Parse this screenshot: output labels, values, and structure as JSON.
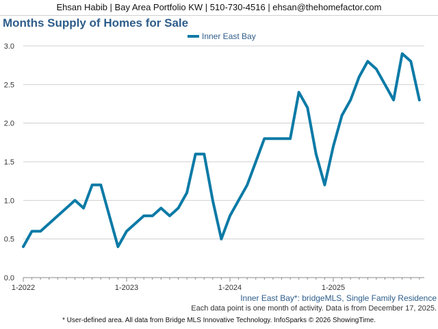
{
  "header": {
    "text": "Ehsan Habib | Bay Area Portfolio KW | 510-730-4516 | ehsan@thehomefactor.com"
  },
  "chart_data": {
    "type": "line",
    "title": "Months Supply of Homes for Sale",
    "legend": [
      "Inner East Bay"
    ],
    "legend_position": "top-center",
    "grid": true,
    "ylim": [
      0,
      3.0
    ],
    "yticks": [
      0.0,
      0.5,
      1.0,
      1.5,
      2.0,
      2.5,
      3.0
    ],
    "ytick_labels": [
      "0.0",
      "0.5",
      "1.0",
      "1.5",
      "2.0",
      "2.5",
      "3.0"
    ],
    "xtick_labels": [
      "1-2022",
      "1-2023",
      "1-2024",
      "1-2025"
    ],
    "x": [
      "1-2022",
      "2-2022",
      "3-2022",
      "4-2022",
      "5-2022",
      "6-2022",
      "7-2022",
      "8-2022",
      "9-2022",
      "10-2022",
      "11-2022",
      "12-2022",
      "1-2023",
      "2-2023",
      "3-2023",
      "4-2023",
      "5-2023",
      "6-2023",
      "7-2023",
      "8-2023",
      "9-2023",
      "10-2023",
      "11-2023",
      "12-2023",
      "1-2024",
      "2-2024",
      "3-2024",
      "4-2024",
      "5-2024",
      "6-2024",
      "7-2024",
      "8-2024",
      "9-2024",
      "10-2024",
      "11-2024",
      "12-2024",
      "1-2025",
      "2-2025",
      "3-2025",
      "4-2025",
      "5-2025",
      "6-2025",
      "7-2025",
      "8-2025",
      "9-2025",
      "10-2025",
      "11-2025"
    ],
    "series": [
      {
        "name": "Inner East Bay",
        "color": "#0b7aa6",
        "values": [
          0.4,
          0.6,
          0.6,
          0.7,
          0.8,
          0.9,
          1.0,
          0.9,
          1.2,
          1.2,
          0.8,
          0.4,
          0.6,
          0.7,
          0.8,
          0.8,
          0.9,
          0.8,
          0.9,
          1.1,
          1.6,
          1.6,
          1.0,
          0.5,
          0.8,
          1.0,
          1.2,
          1.5,
          1.8,
          1.8,
          1.8,
          1.8,
          2.4,
          2.2,
          1.6,
          1.2,
          1.7,
          2.1,
          2.3,
          2.6,
          2.8,
          2.7,
          2.5,
          2.3,
          2.9,
          2.8,
          2.3
        ]
      }
    ]
  },
  "subtitle": "Inner East Bay*: bridgeMLS, Single Family Residence",
  "note": "Each data point is one month of activity. Data is from December 17, 2025.",
  "footer": "* User-defined area. All data from Bridge MLS Innovative Technology. InfoSparks © 2026 ShowingTime."
}
